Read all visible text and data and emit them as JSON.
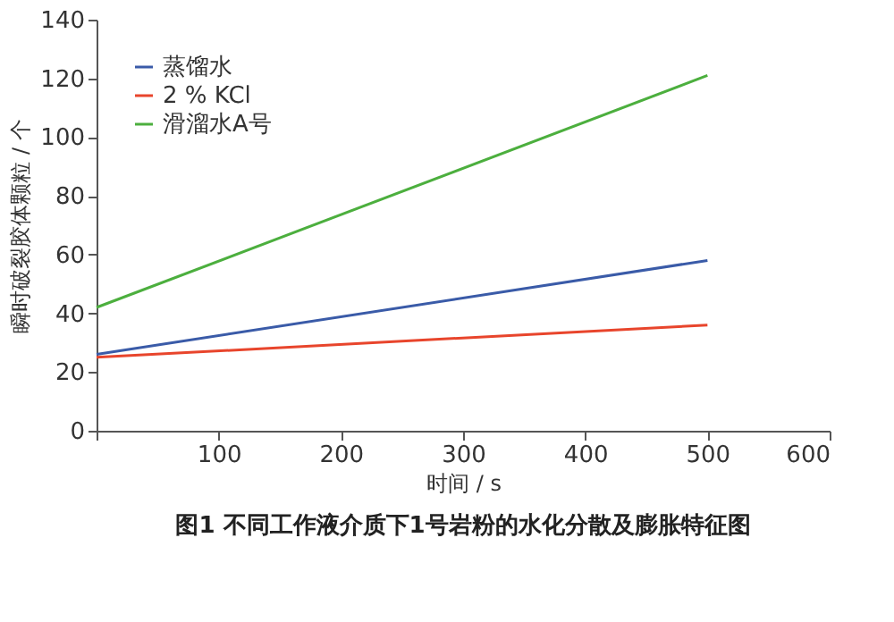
{
  "chart_data": {
    "type": "line",
    "title": "图1  不同工作液介质下1号岩粉的水化分散及膨胀特征图",
    "xlabel": "时间 / s",
    "ylabel": "瞬时破裂胶体颗粒 / 个",
    "x": [
      0,
      500
    ],
    "series": [
      {
        "name": "蒸馏水",
        "color": "#3a5ba8",
        "values": [
          26,
          58
        ]
      },
      {
        "name": "2 % KCl",
        "color": "#e8452c",
        "values": [
          25,
          36
        ]
      },
      {
        "name": "滑溜水A号",
        "color": "#4caf3e",
        "values": [
          42,
          121
        ]
      }
    ],
    "xlim": [
      0,
      600
    ],
    "xticks": [
      {
        "value": 0,
        "label": null
      },
      100,
      200,
      300,
      400,
      500,
      600
    ],
    "ylim": [
      0,
      140
    ],
    "yticks": [
      0,
      20,
      40,
      60,
      80,
      100,
      120,
      140
    ],
    "legend": "top left",
    "grid": false,
    "line_style": "solid"
  }
}
